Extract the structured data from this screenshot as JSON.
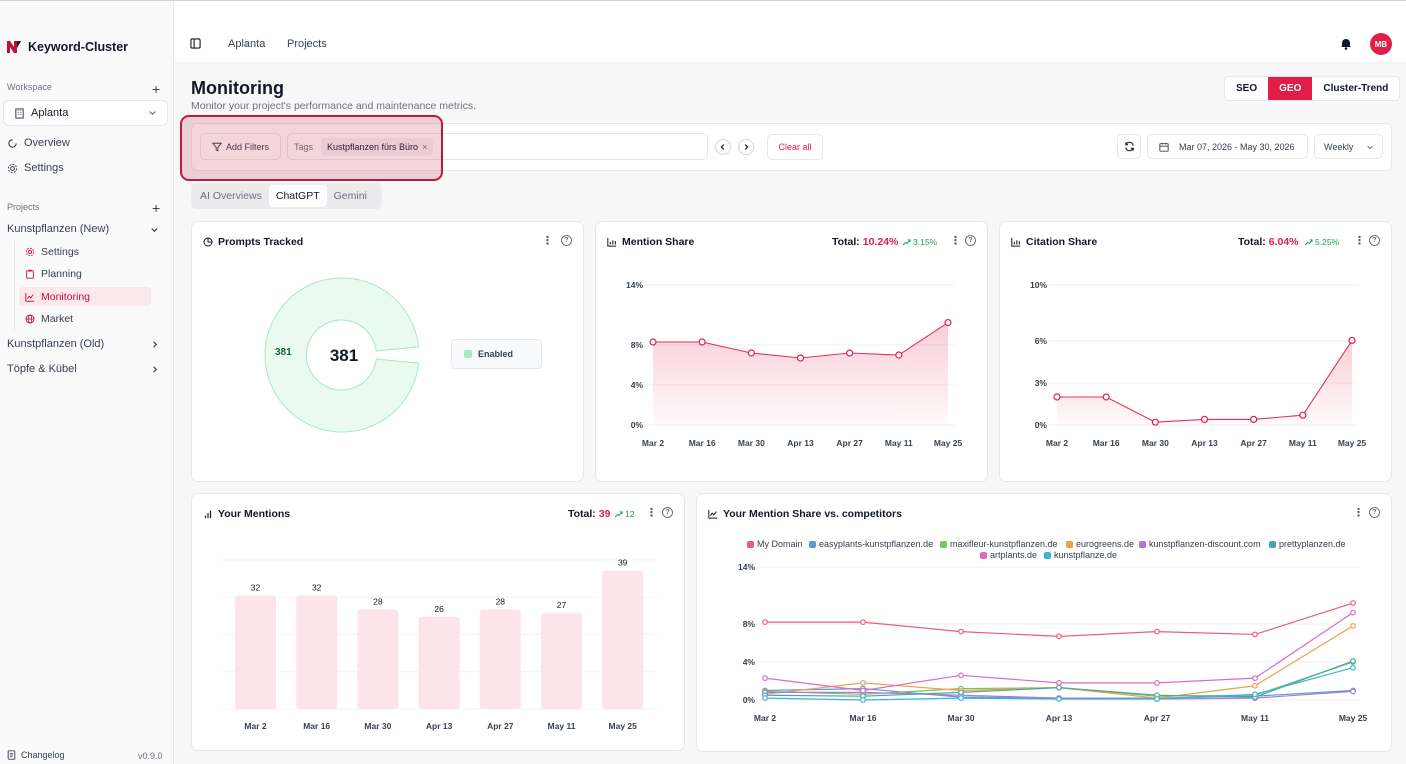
{
  "app": {
    "name": "Keyword-Cluster",
    "version": "v0.9.0",
    "changelog": "Changelog"
  },
  "sidebar": {
    "workspace_label": "Workspace",
    "workspace": "Aplanta",
    "nav": [
      {
        "label": "Overview",
        "icon": "circle-arrow-icon"
      },
      {
        "label": "Settings",
        "icon": "gear-icon"
      }
    ],
    "projects_label": "Projects",
    "projects": [
      {
        "label": "Kunstpflanzen (New)",
        "expanded": true,
        "children": [
          {
            "label": "Settings",
            "icon": "gear-icon"
          },
          {
            "label": "Planning",
            "icon": "clipboard-icon"
          },
          {
            "label": "Monitoring",
            "icon": "line-chart-icon",
            "active": true
          },
          {
            "label": "Market",
            "icon": "globe-icon"
          }
        ]
      },
      {
        "label": "Kunstpflanzen (Old)",
        "expanded": false
      },
      {
        "label": "Töpfe & Kübel",
        "expanded": false
      }
    ]
  },
  "header": {
    "breadcrumb": [
      "Aplanta",
      "Projects"
    ],
    "avatar": "MB"
  },
  "page": {
    "title": "Monitoring",
    "subtitle": "Monitor your project's performance and maintenance metrics.",
    "modes": [
      "SEO",
      "GEO",
      "Cluster-Trend"
    ],
    "active_mode": "GEO"
  },
  "filters": {
    "add_filters": "Add Filters",
    "tags_label": "Tags",
    "tag_chip": "Kustpflanzen fürs Büro",
    "clear_all": "Clear all",
    "date_range": "Mar 07, 2026 - May 30, 2026",
    "interval": "Weekly"
  },
  "tabs": {
    "items": [
      "AI Overviews",
      "ChatGPT",
      "Gemini"
    ],
    "active": "ChatGPT"
  },
  "cards": {
    "prompts": {
      "title": "Prompts Tracked",
      "center_value": "381",
      "ring_label": "381",
      "legend": "Enabled"
    },
    "mention_share": {
      "title": "Mention Share",
      "total_label": "Total:",
      "total_value": "10.24%",
      "trend": "3.15%"
    },
    "citation_share": {
      "title": "Citation Share",
      "total_label": "Total:",
      "total_value": "6.04%",
      "trend": "5.25%"
    },
    "your_mentions": {
      "title": "Your Mentions",
      "total_label": "Total:",
      "total_value": "39",
      "trend": "12"
    },
    "competitors": {
      "title": "Your Mention Share vs. competitors"
    }
  },
  "colors": {
    "accent": "#e11d48",
    "positive": "#16a34a",
    "enabled": "#a7e8c9"
  },
  "chart_data": [
    {
      "id": "prompts",
      "type": "pie",
      "categories": [
        "Enabled"
      ],
      "values": [
        381
      ]
    },
    {
      "id": "mention_share",
      "type": "area",
      "x": [
        "Mar 2",
        "Mar 16",
        "Mar 30",
        "Apr 13",
        "Apr 27",
        "May 11",
        "May 25"
      ],
      "y_ticks": [
        "0%",
        "4%",
        "8%",
        "14%"
      ],
      "ylim": [
        0,
        14
      ],
      "series": [
        {
          "values": [
            8.3,
            8.3,
            7.2,
            6.7,
            7.2,
            7.0,
            10.24
          ],
          "color": "#e11d48"
        }
      ]
    },
    {
      "id": "citation_share",
      "type": "area",
      "x": [
        "Mar 2",
        "Mar 16",
        "Mar 30",
        "Apr 13",
        "Apr 27",
        "May 11",
        "May 25"
      ],
      "y_ticks": [
        "0%",
        "3%",
        "6%",
        "10%"
      ],
      "ylim": [
        0,
        10
      ],
      "series": [
        {
          "values": [
            2.0,
            2.0,
            0.2,
            0.4,
            0.4,
            0.7,
            6.04
          ],
          "color": "#e11d48"
        }
      ]
    },
    {
      "id": "your_mentions",
      "type": "bar",
      "categories": [
        "Mar 2",
        "Mar 16",
        "Mar 30",
        "Apr 13",
        "Apr 27",
        "May 11",
        "May 25"
      ],
      "values": [
        32,
        32,
        28,
        26,
        28,
        27,
        39
      ],
      "ylim": [
        0,
        42
      ],
      "color": "#fce4ea"
    },
    {
      "id": "competitors",
      "type": "line",
      "x": [
        "Mar 2",
        "Mar 16",
        "Mar 30",
        "Apr 13",
        "Apr 27",
        "May 11",
        "May 25"
      ],
      "y_ticks": [
        "0%",
        "4%",
        "8%",
        "14%"
      ],
      "ylim": [
        0,
        14
      ],
      "legend": "top-center",
      "series": [
        {
          "name": "My Domain",
          "color": "#ef5b7a",
          "values": [
            8.2,
            8.2,
            7.2,
            6.7,
            7.2,
            6.9,
            10.2
          ]
        },
        {
          "name": "easyplants-kunstpflanzen.de",
          "color": "#5b9bd5",
          "values": [
            1.0,
            1.2,
            0.3,
            0.2,
            0.2,
            0.4,
            1.0
          ]
        },
        {
          "name": "maxifleur-kunstpflanzen.de",
          "color": "#7cc35c",
          "values": [
            0.9,
            0.6,
            1.2,
            1.3,
            0.4,
            0.5,
            4.0
          ]
        },
        {
          "name": "eurogreens.de",
          "color": "#f0a048",
          "values": [
            0.6,
            1.8,
            1.0,
            1.3,
            0.2,
            1.5,
            7.8
          ]
        },
        {
          "name": "kunstpflanzen-discount.com",
          "color": "#a97ad8",
          "values": [
            0.8,
            0.8,
            0.5,
            0.2,
            0.1,
            0.2,
            0.9
          ]
        },
        {
          "name": "prettyplanzen.de",
          "color": "#4aa7a0",
          "values": [
            0.5,
            0.4,
            0.8,
            1.3,
            0.5,
            0.3,
            4.1
          ]
        },
        {
          "name": "artplants.de",
          "color": "#e06ac0",
          "values": [
            2.3,
            1.0,
            2.6,
            1.8,
            1.8,
            2.3,
            9.2
          ]
        },
        {
          "name": "kunstpflanze.de",
          "color": "#3cb4d8",
          "values": [
            0.2,
            0.0,
            0.2,
            0.1,
            0.1,
            0.6,
            3.4
          ]
        }
      ]
    }
  ]
}
